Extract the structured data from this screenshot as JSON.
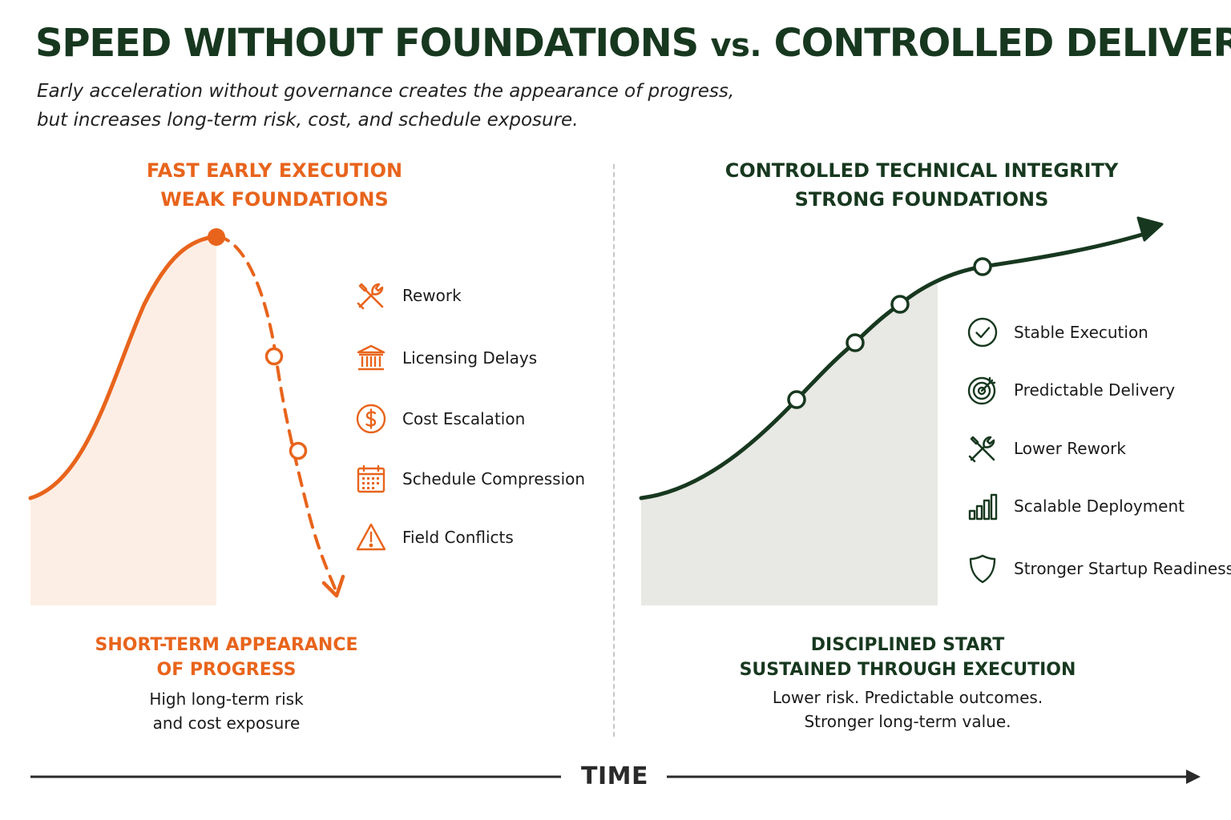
{
  "title": {
    "part1": "SPEED WITHOUT FOUNDATIONS ",
    "vs": "vs.",
    "part2": " CONTROLLED DELIVERY"
  },
  "subtitle": {
    "line1": "Early acceleration without governance creates the appearance of progress,",
    "line2": "but increases long-term risk, cost, and schedule exposure."
  },
  "left": {
    "heading_line1": "FAST EARLY EXECUTION",
    "heading_line2": "WEAK FOUNDATIONS",
    "items": [
      {
        "label": "Rework",
        "icon": "tools-icon"
      },
      {
        "label": "Licensing Delays",
        "icon": "bank-icon"
      },
      {
        "label": "Cost Escalation",
        "icon": "dollar-icon"
      },
      {
        "label": "Schedule Compression",
        "icon": "calendar-icon"
      },
      {
        "label": "Field Conflicts",
        "icon": "warning-icon"
      }
    ],
    "bottom_heading_line1": "SHORT-TERM APPEARANCE",
    "bottom_heading_line2": "OF PROGRESS",
    "note_line1": "High long-term risk",
    "note_line2": "and cost exposure",
    "accent_color": "#e8641c"
  },
  "right": {
    "heading_line1": "CONTROLLED TECHNICAL INTEGRITY",
    "heading_line2": "STRONG FOUNDATIONS",
    "items": [
      {
        "label": "Stable Execution",
        "icon": "check-circle-icon"
      },
      {
        "label": "Predictable Delivery",
        "icon": "target-icon"
      },
      {
        "label": "Lower Rework",
        "icon": "tools-icon"
      },
      {
        "label": "Scalable Deployment",
        "icon": "bar-chart-icon"
      },
      {
        "label": "Stronger Startup Readiness",
        "icon": "shield-icon"
      }
    ],
    "bottom_heading_line1": "DISCIPLINED START",
    "bottom_heading_line2": "SUSTAINED THROUGH EXECUTION",
    "note_line1": "Lower risk. Predictable outcomes.",
    "note_line2": "Stronger long-term value.",
    "accent_color": "#17381f"
  },
  "axis": {
    "label": "TIME"
  }
}
